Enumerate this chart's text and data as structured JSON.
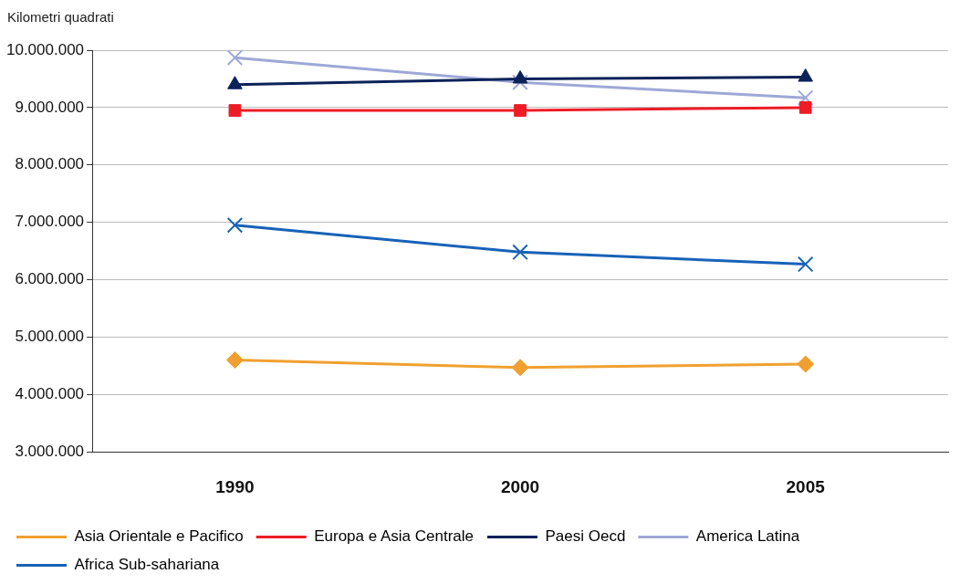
{
  "chart_data": {
    "type": "line",
    "ylabel": "Kilometri quadrati",
    "categories": [
      "1990",
      "2000",
      "2005"
    ],
    "series": [
      {
        "name": "Asia Orientale e Pacifico",
        "color": "#f0a030",
        "marker": "diamond",
        "values": [
          4600000,
          4470000,
          4530000
        ]
      },
      {
        "name": "Europa e Asia Centrale",
        "color": "#ee1c25",
        "marker": "square",
        "values": [
          8950000,
          8950000,
          9000000
        ]
      },
      {
        "name": "Paesi Oecd",
        "color": "#0b2259",
        "marker": "triangle",
        "values": [
          9400000,
          9500000,
          9530000
        ]
      },
      {
        "name": "America Latina",
        "color": "#9ea8d6",
        "marker": "cross",
        "values": [
          9870000,
          9440000,
          9170000
        ]
      },
      {
        "name": "Africa Sub-sahariana",
        "color": "#1862b8",
        "marker": "cross",
        "values": [
          6950000,
          6480000,
          6270000
        ]
      }
    ],
    "ylim": [
      3000000,
      10000000
    ],
    "yticks": [
      {
        "value": 3000000,
        "label": "3.000.000"
      },
      {
        "value": 4000000,
        "label": "4.000.000"
      },
      {
        "value": 5000000,
        "label": "5.000.000"
      },
      {
        "value": 6000000,
        "label": "6.000.000"
      },
      {
        "value": 7000000,
        "label": "7.000.000"
      },
      {
        "value": 8000000,
        "label": "8.000.000"
      },
      {
        "value": 9000000,
        "label": "9.000.000"
      },
      {
        "value": 10000000,
        "label": "10.000.000"
      }
    ],
    "grid": "y",
    "legend": "bottom",
    "line_style": "solid"
  }
}
